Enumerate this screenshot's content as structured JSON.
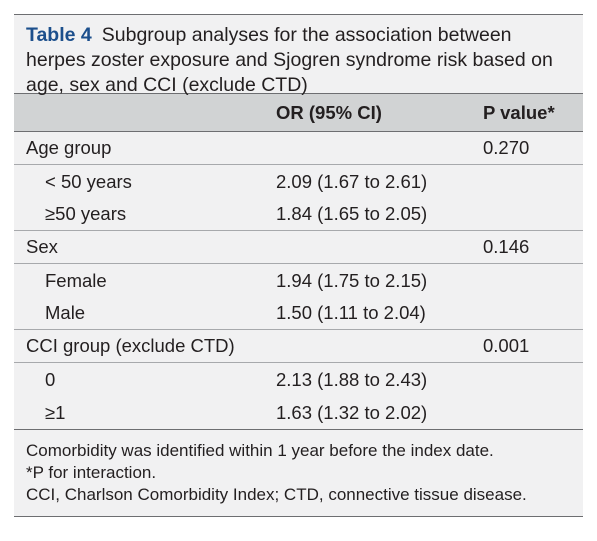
{
  "caption": {
    "label": "Table 4",
    "text": "Subgroup analyses for the association between herpes zoster exposure and Sjogren syndrome risk based on age, sex and CCI (exclude CTD)"
  },
  "header": {
    "col1": "",
    "col2": "OR (95% CI)",
    "col3": "P value*"
  },
  "rows": [
    {
      "label": "Age group",
      "or": "",
      "p": "0.270"
    },
    {
      "label": "< 50 years",
      "or": "2.09 (1.67 to 2.61)",
      "p": ""
    },
    {
      "label": "≥50 years",
      "or": "1.84 (1.65 to 2.05)",
      "p": ""
    },
    {
      "label": "Sex",
      "or": "",
      "p": "0.146"
    },
    {
      "label": "Female",
      "or": "1.94 (1.75 to 2.15)",
      "p": ""
    },
    {
      "label": "Male",
      "or": "1.50 (1.11 to 2.04)",
      "p": ""
    },
    {
      "label": "CCI group (exclude CTD)",
      "or": "",
      "p": "0.001"
    },
    {
      "label": "0",
      "or": "2.13 (1.88 to 2.43)",
      "p": ""
    },
    {
      "label": "≥1",
      "or": "1.63 (1.32 to 2.02)",
      "p": ""
    }
  ],
  "footnotes": [
    "Comorbidity was identified within 1 year before the index date.",
    "*P for interaction.",
    "CCI, Charlson Comorbidity Index; CTD, connective tissue disease."
  ]
}
